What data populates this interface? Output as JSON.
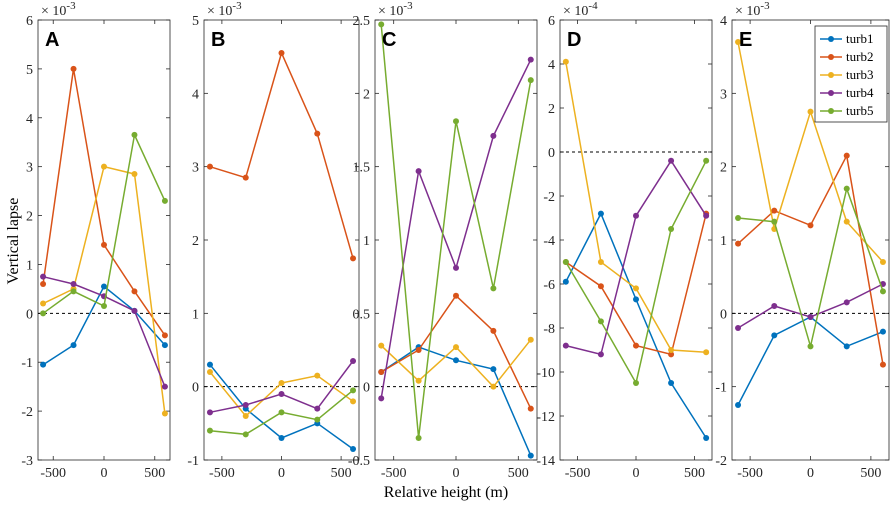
{
  "chart_data": {
    "type": "line",
    "xlabel": "Relative height (m)",
    "ylabel": "Vertical lapse",
    "x": [
      -600,
      -300,
      0,
      300,
      600
    ],
    "xticks": [
      -500,
      0,
      500
    ],
    "xtick_labels": [
      "-500",
      "0",
      "500"
    ],
    "xlim": [
      -650,
      650
    ],
    "legend": [
      "turb1",
      "turb2",
      "turb3",
      "turb4",
      "turb5"
    ],
    "colors": [
      "#0072BD",
      "#D95319",
      "#EDB120",
      "#7E2F8E",
      "#77AC30"
    ],
    "panels": [
      {
        "label": "A",
        "exponent_base": "× 10",
        "exponent_power": "-3",
        "ylim": [
          -3,
          6
        ],
        "yticks": [
          -3,
          -2,
          -1,
          0,
          1,
          2,
          3,
          4,
          5,
          6
        ],
        "ytick_labels": [
          "-3",
          "-2",
          "-1",
          "0",
          "1",
          "2",
          "3",
          "4",
          "5",
          "6"
        ],
        "series": [
          {
            "name": "turb1",
            "values": [
              -1.05,
              -0.65,
              0.55,
              0.05,
              -0.65
            ]
          },
          {
            "name": "turb2",
            "values": [
              0.6,
              5.0,
              1.4,
              0.45,
              -0.45
            ]
          },
          {
            "name": "turb3",
            "values": [
              0.2,
              0.5,
              3.0,
              2.85,
              -2.05
            ]
          },
          {
            "name": "turb4",
            "values": [
              0.75,
              0.6,
              0.35,
              0.05,
              -1.5
            ]
          },
          {
            "name": "turb5",
            "values": [
              0.0,
              0.45,
              0.15,
              3.65,
              2.3
            ]
          }
        ]
      },
      {
        "label": "B",
        "exponent_base": "× 10",
        "exponent_power": "-3",
        "ylim": [
          -1,
          5
        ],
        "yticks": [
          -1,
          0,
          1,
          2,
          3,
          4,
          5
        ],
        "ytick_labels": [
          "-1",
          "0",
          "1",
          "2",
          "3",
          "4",
          "5"
        ],
        "series": [
          {
            "name": "turb1",
            "values": [
              0.3,
              -0.3,
              -0.7,
              -0.5,
              -0.85
            ]
          },
          {
            "name": "turb2",
            "values": [
              3.0,
              2.85,
              4.55,
              3.45,
              1.75
            ]
          },
          {
            "name": "turb3",
            "values": [
              0.2,
              -0.4,
              0.05,
              0.15,
              -0.2
            ]
          },
          {
            "name": "turb4",
            "values": [
              -0.35,
              -0.25,
              -0.1,
              -0.3,
              0.35
            ]
          },
          {
            "name": "turb5",
            "values": [
              -0.6,
              -0.65,
              -0.35,
              -0.45,
              -0.05
            ]
          }
        ]
      },
      {
        "label": "C",
        "exponent_base": "× 10",
        "exponent_power": "-3",
        "ylim": [
          -0.5,
          2.5
        ],
        "yticks": [
          -0.5,
          0,
          0.5,
          1,
          1.5,
          2,
          2.5
        ],
        "ytick_labels": [
          "-0.5",
          "0",
          "0.5",
          "1",
          "1.5",
          "2",
          "2.5"
        ],
        "series": [
          {
            "name": "turb1",
            "values": [
              0.1,
              0.27,
              0.18,
              0.12,
              -0.47
            ]
          },
          {
            "name": "turb2",
            "values": [
              0.1,
              0.25,
              0.62,
              0.38,
              -0.15
            ]
          },
          {
            "name": "turb3",
            "values": [
              0.28,
              0.04,
              0.27,
              0.0,
              0.32
            ]
          },
          {
            "name": "turb4",
            "values": [
              -0.08,
              1.47,
              0.81,
              1.71,
              2.23
            ]
          },
          {
            "name": "turb5",
            "values": [
              2.47,
              -0.35,
              1.81,
              0.67,
              2.09
            ]
          }
        ]
      },
      {
        "label": "D",
        "exponent_base": "× 10",
        "exponent_power": "-4",
        "ylim": [
          -14,
          6
        ],
        "yticks": [
          -14,
          -12,
          -10,
          -8,
          -6,
          -4,
          -2,
          0,
          2,
          4,
          6
        ],
        "ytick_labels": [
          "-14",
          "-12",
          "-10",
          "-8",
          "-6",
          "-4",
          "-2",
          "0",
          "2",
          "4",
          "6"
        ],
        "series": [
          {
            "name": "turb1",
            "values": [
              -5.9,
              -2.8,
              -6.7,
              -10.5,
              -13.0
            ]
          },
          {
            "name": "turb2",
            "values": [
              -5.0,
              -6.1,
              -8.8,
              -9.2,
              -2.8
            ]
          },
          {
            "name": "turb3",
            "values": [
              4.1,
              -5.0,
              -6.2,
              -9.0,
              -9.1
            ]
          },
          {
            "name": "turb4",
            "values": [
              -8.8,
              -9.2,
              -2.9,
              -0.4,
              -2.9
            ]
          },
          {
            "name": "turb5",
            "values": [
              -5.0,
              -7.7,
              -10.5,
              -3.5,
              -0.4
            ]
          }
        ]
      },
      {
        "label": "E",
        "exponent_base": "× 10",
        "exponent_power": "-3",
        "ylim": [
          -2,
          4
        ],
        "yticks": [
          -2,
          -1,
          0,
          1,
          2,
          3,
          4
        ],
        "ytick_labels": [
          "-2",
          "-1",
          "0",
          "1",
          "2",
          "3",
          "4"
        ],
        "series": [
          {
            "name": "turb1",
            "values": [
              -1.25,
              -0.3,
              -0.05,
              -0.45,
              -0.25
            ]
          },
          {
            "name": "turb2",
            "values": [
              0.95,
              1.4,
              1.2,
              2.15,
              -0.7
            ]
          },
          {
            "name": "turb3",
            "values": [
              3.7,
              1.15,
              2.75,
              1.25,
              0.7
            ]
          },
          {
            "name": "turb4",
            "values": [
              -0.2,
              0.1,
              -0.05,
              0.15,
              0.4
            ]
          },
          {
            "name": "turb5",
            "values": [
              1.3,
              1.25,
              -0.45,
              1.7,
              0.3
            ]
          }
        ]
      }
    ]
  }
}
